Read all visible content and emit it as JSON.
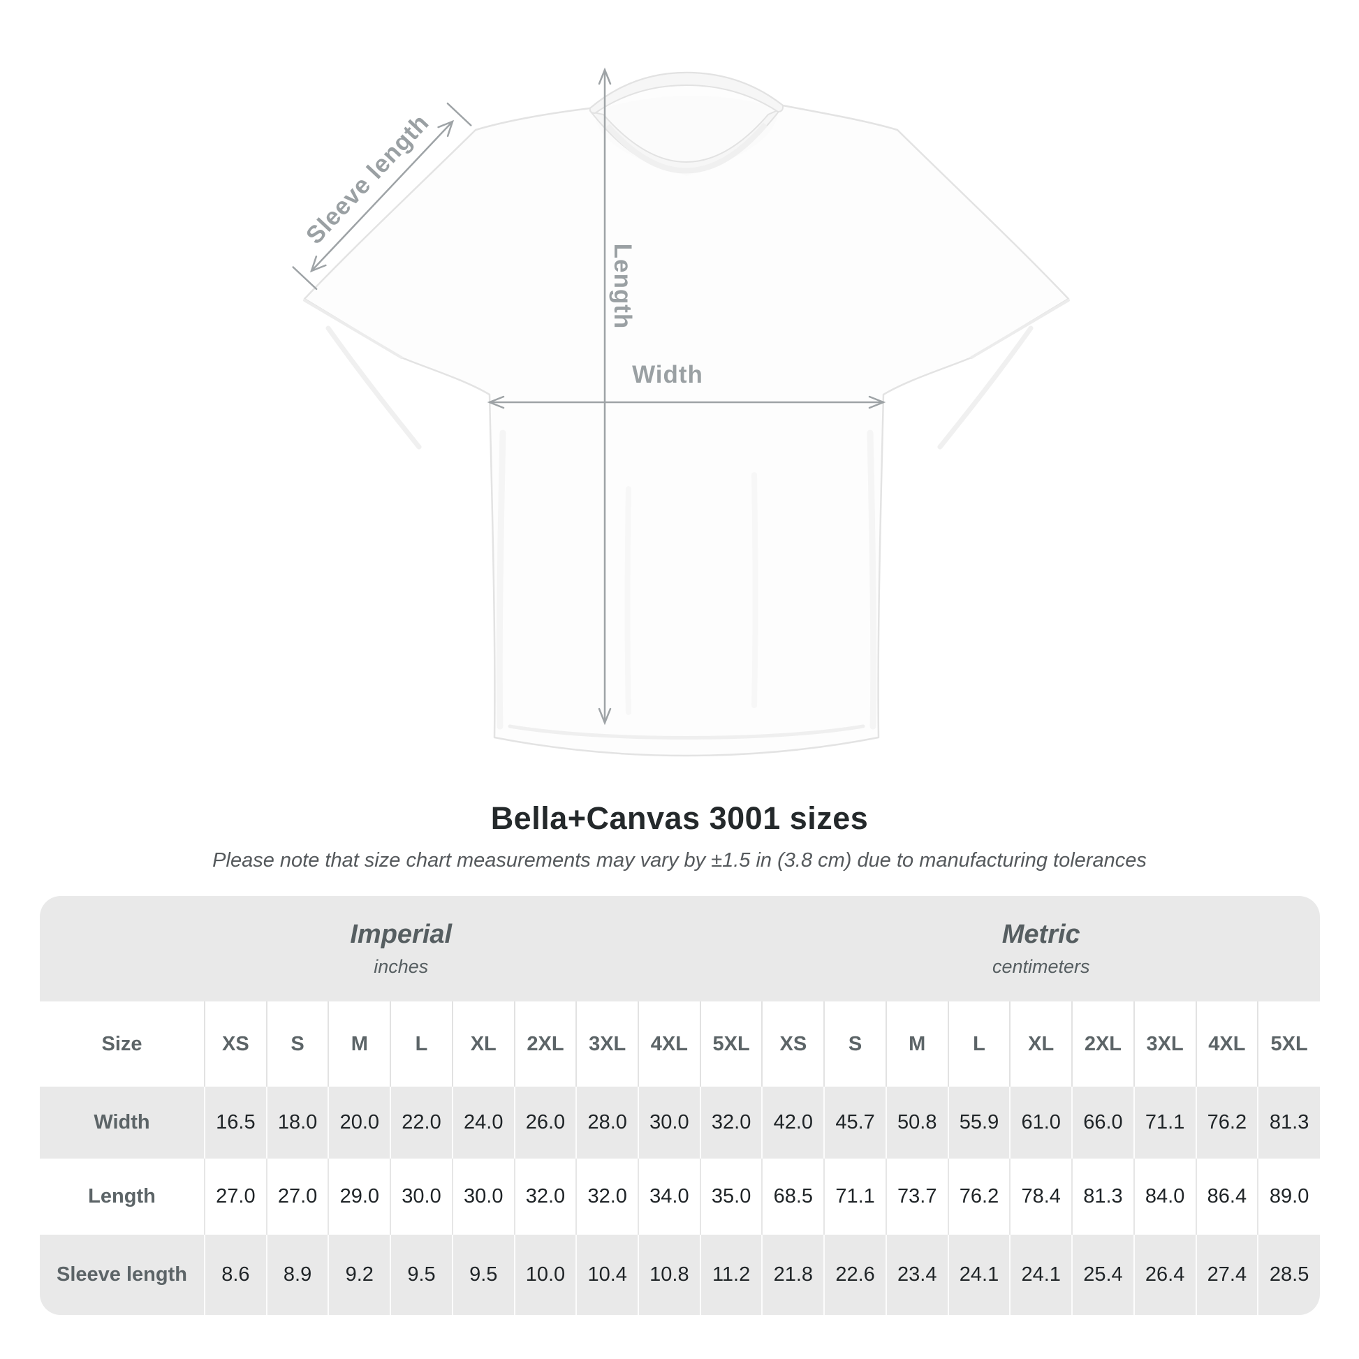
{
  "figure": {
    "labels": {
      "sleeve": "Sleeve length",
      "length": "Length",
      "width": "Width"
    }
  },
  "title": "Bella+Canvas 3001 sizes",
  "subtitle": "Please note that size chart measurements may vary by ±1.5 in (3.8 cm) due to manufacturing tolerances",
  "size_chart": {
    "groups": [
      {
        "label": "Imperial",
        "sublabel": "inches",
        "span": 10
      },
      {
        "label": "Metric",
        "sublabel": "centimeters",
        "span": 9
      }
    ],
    "corner_header": "Size",
    "sizes": [
      "XS",
      "S",
      "M",
      "L",
      "XL",
      "2XL",
      "3XL",
      "4XL",
      "5XL"
    ],
    "rows": [
      {
        "label": "Width",
        "imperial": [
          "16.5",
          "18.0",
          "20.0",
          "22.0",
          "24.0",
          "26.0",
          "28.0",
          "30.0",
          "32.0"
        ],
        "metric": [
          "42.0",
          "45.7",
          "50.8",
          "55.9",
          "61.0",
          "66.0",
          "71.1",
          "76.2",
          "81.3"
        ]
      },
      {
        "label": "Length",
        "imperial": [
          "27.0",
          "27.0",
          "29.0",
          "30.0",
          "30.0",
          "32.0",
          "32.0",
          "34.0",
          "35.0"
        ],
        "metric": [
          "68.5",
          "71.1",
          "73.7",
          "76.2",
          "78.4",
          "81.3",
          "84.0",
          "86.4",
          "89.0"
        ]
      },
      {
        "label": "Sleeve length",
        "imperial": [
          "8.6",
          "8.9",
          "9.2",
          "9.5",
          "9.5",
          "10.0",
          "10.4",
          "10.8",
          "11.2"
        ],
        "metric": [
          "21.8",
          "22.6",
          "23.4",
          "24.1",
          "24.1",
          "25.4",
          "26.4",
          "27.4",
          "28.5"
        ]
      }
    ]
  },
  "chart_data": {
    "type": "table",
    "title": "Bella+Canvas 3001 sizes",
    "note": "Please note that size chart measurements may vary by ±1.5 in (3.8 cm) due to manufacturing tolerances",
    "unit_groups": [
      {
        "name": "Imperial",
        "unit": "inches"
      },
      {
        "name": "Metric",
        "unit": "centimeters"
      }
    ],
    "categories": [
      "XS",
      "S",
      "M",
      "L",
      "XL",
      "2XL",
      "3XL",
      "4XL",
      "5XL"
    ],
    "series": [
      {
        "name": "Width (in)",
        "values": [
          16.5,
          18.0,
          20.0,
          22.0,
          24.0,
          26.0,
          28.0,
          30.0,
          32.0
        ]
      },
      {
        "name": "Length (in)",
        "values": [
          27.0,
          27.0,
          29.0,
          30.0,
          30.0,
          32.0,
          32.0,
          34.0,
          35.0
        ]
      },
      {
        "name": "Sleeve length (in)",
        "values": [
          8.6,
          8.9,
          9.2,
          9.5,
          9.5,
          10.0,
          10.4,
          10.8,
          11.2
        ]
      },
      {
        "name": "Width (cm)",
        "values": [
          42.0,
          45.7,
          50.8,
          55.9,
          61.0,
          66.0,
          71.1,
          76.2,
          81.3
        ]
      },
      {
        "name": "Length (cm)",
        "values": [
          68.5,
          71.1,
          73.7,
          76.2,
          78.4,
          81.3,
          84.0,
          86.4,
          89.0
        ]
      },
      {
        "name": "Sleeve length (cm)",
        "values": [
          21.8,
          22.6,
          23.4,
          24.1,
          24.1,
          25.4,
          26.4,
          27.4,
          28.5
        ]
      }
    ]
  },
  "colors": {
    "table_band_gray": "#e9e9e9",
    "table_white": "#ffffff",
    "header_text_gray": "#5c6467",
    "value_text_dark": "#1f2427",
    "title_dark": "#24292b",
    "annotation_gray": "#9aa0a3",
    "shirt_outline": "#e3e3e3"
  }
}
